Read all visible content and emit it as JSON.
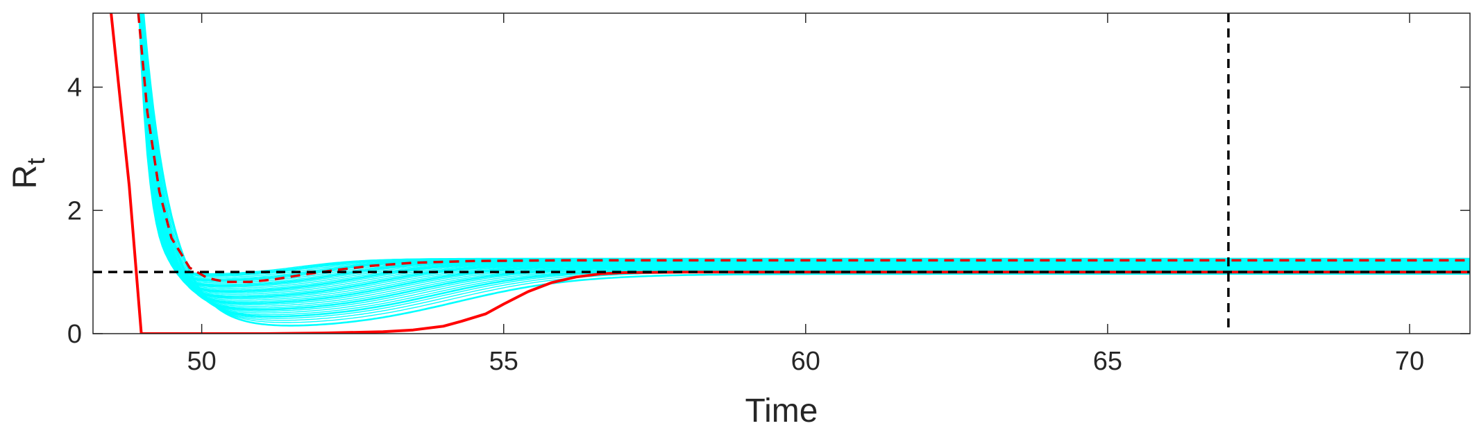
{
  "chart_data": {
    "type": "line",
    "xlabel": "Time",
    "ylabel": "R",
    "ylabel_subscript": "t",
    "xlim": [
      48.2,
      71.0
    ],
    "ylim": [
      0,
      5.2
    ],
    "xticks": [
      50,
      55,
      60,
      65,
      70
    ],
    "yticks": [
      0,
      2,
      4
    ],
    "grid": false,
    "reference_lines": {
      "horizontal_y": 1.0,
      "vertical_x": 67.0
    },
    "colors": {
      "ensemble": "#00ffff",
      "lower": "#ff0000",
      "upper": "#e00000",
      "reference": "#000000",
      "axis": "#262626"
    },
    "ensemble": {
      "count": 34,
      "start_x": 48.9,
      "start_y": 7.0,
      "final_min": 0.97,
      "final_max": 1.22,
      "dip_min": 0.05,
      "dip_max": 0.95
    },
    "series": [
      {
        "style": "solid",
        "x": [
          48.2,
          48.5,
          48.8,
          49.0,
          49.3,
          50.0,
          51.0,
          52.0,
          53.0,
          53.5,
          54.0,
          54.3,
          54.7,
          55.0,
          55.4,
          55.8,
          56.2,
          56.6,
          57.0,
          58.0,
          60.0,
          65.0,
          71.0
        ],
        "y": [
          7.0,
          5.2,
          2.4,
          0.0,
          0.0,
          0.0,
          0.0,
          0.01,
          0.03,
          0.06,
          0.12,
          0.2,
          0.32,
          0.48,
          0.68,
          0.83,
          0.92,
          0.97,
          0.99,
          1.0,
          1.0,
          1.0,
          1.0
        ]
      },
      {
        "style": "dashed",
        "x": [
          48.95,
          49.1,
          49.3,
          49.5,
          49.8,
          50.1,
          50.4,
          50.8,
          51.2,
          51.7,
          52.2,
          52.8,
          53.5,
          54.5,
          56.0,
          58.0,
          60.0,
          65.0,
          71.0
        ],
        "y": [
          5.2,
          3.6,
          2.3,
          1.55,
          1.07,
          0.9,
          0.84,
          0.84,
          0.88,
          0.96,
          1.03,
          1.1,
          1.15,
          1.18,
          1.19,
          1.19,
          1.19,
          1.19,
          1.19
        ]
      }
    ]
  }
}
